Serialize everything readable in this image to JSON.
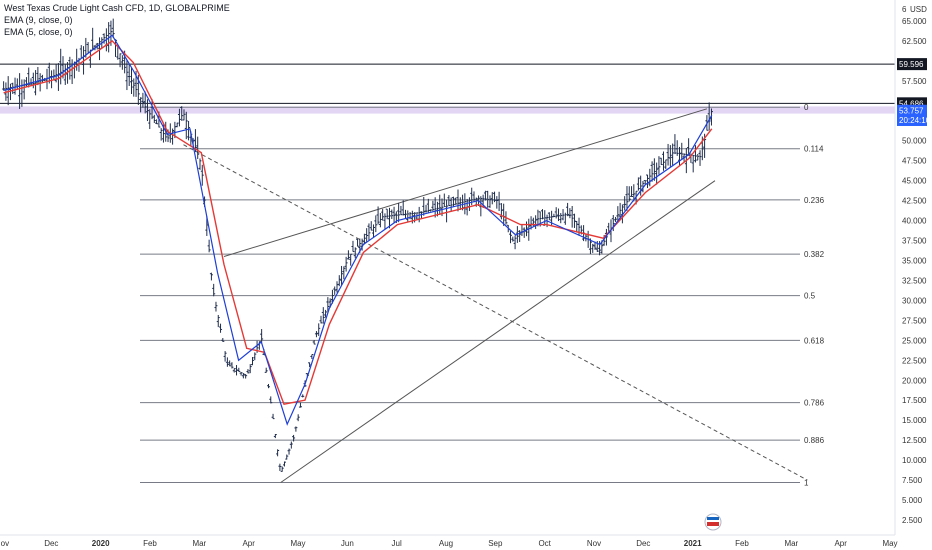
{
  "legend": {
    "title": "West Texas Crude Light Cash CFD, 1D, GLOBALPRIME",
    "ema9": "EMA (9, close, 0)",
    "ema5": "EMA (5, close, 0)"
  },
  "currency": "USD",
  "colors": {
    "ema9": "#e53935",
    "ema5": "#1e3fd6",
    "candle": "#1f2d4d",
    "zone": "#d9c8f2",
    "tag_dark": "#131722",
    "tag_blue": "#2962ff"
  },
  "chart_data": {
    "type": "candlestick",
    "title": "West Texas Crude Light Cash CFD, 1D, GLOBALPRIME",
    "x_ticks": [
      "Nov",
      "Dec",
      "2020",
      "Feb",
      "Mar",
      "Apr",
      "May",
      "Jun",
      "Jul",
      "Aug",
      "Sep",
      "Oct",
      "Nov",
      "Dec",
      "2021",
      "Feb",
      "Mar",
      "Apr",
      "May"
    ],
    "y_ticks": [
      "65.000",
      "62.500",
      "57.500",
      "52.500",
      "50.000",
      "47.500",
      "45.000",
      "42.500",
      "40.000",
      "37.500",
      "35.000",
      "32.500",
      "30.000",
      "27.500",
      "25.000",
      "22.500",
      "20.000",
      "17.500",
      "15.000",
      "12.500",
      "10.000",
      "7.500",
      "5.000",
      "2.500"
    ],
    "y_top_label": "6",
    "ylim": [
      1.5,
      67
    ],
    "price_tags": [
      {
        "value": 59.596,
        "label": "59.596",
        "style": "dark"
      },
      {
        "value": 54.686,
        "label": "54.686",
        "style": "dark"
      },
      {
        "value": 53.757,
        "label": "53.757",
        "style": "blue"
      },
      {
        "value": 52.6,
        "label": "20:24:10",
        "style": "blue"
      }
    ],
    "horizontal_levels": [
      59.596,
      54.686
    ],
    "zone": [
      53.4,
      54.3
    ],
    "fibonacci": [
      {
        "ratio": "0",
        "value": 54.2
      },
      {
        "ratio": "0.114",
        "value": 49.0
      },
      {
        "ratio": "0.236",
        "value": 42.6
      },
      {
        "ratio": "0.382",
        "value": 35.8
      },
      {
        "ratio": "0.5",
        "value": 30.6
      },
      {
        "ratio": "0.618",
        "value": 25.0
      },
      {
        "ratio": "0.786",
        "value": 17.2
      },
      {
        "ratio": "0.886",
        "value": 12.5
      },
      {
        "ratio": "1",
        "value": 7.2
      }
    ],
    "trendlines": [
      {
        "name": "upper",
        "from": [
          "2020-03-16",
          35.5
        ],
        "to": [
          "2021-01-08",
          54.0
        ],
        "style": "solid"
      },
      {
        "name": "lower",
        "from": [
          "2020-04-20",
          7.2
        ],
        "to": [
          "2021-01-13",
          45.0
        ],
        "style": "solid"
      },
      {
        "name": "diagonal",
        "from": [
          "2020-02-20",
          49.5
        ],
        "to": [
          "2021-03-11",
          7.5
        ],
        "style": "dashed"
      }
    ],
    "price_series": [
      {
        "date": "2019-11-01",
        "close": 56.5
      },
      {
        "date": "2019-11-20",
        "close": 57.2
      },
      {
        "date": "2019-12-05",
        "close": 58.4
      },
      {
        "date": "2019-12-20",
        "close": 60.5
      },
      {
        "date": "2020-01-03",
        "close": 63.1
      },
      {
        "date": "2020-01-07",
        "close": 63.8
      },
      {
        "date": "2020-01-15",
        "close": 59.0
      },
      {
        "date": "2020-01-28",
        "close": 54.0
      },
      {
        "date": "2020-02-10",
        "close": 50.2
      },
      {
        "date": "2020-02-20",
        "close": 53.5
      },
      {
        "date": "2020-03-02",
        "close": 47.0
      },
      {
        "date": "2020-03-09",
        "close": 31.5
      },
      {
        "date": "2020-03-18",
        "close": 22.0
      },
      {
        "date": "2020-03-30",
        "close": 20.5
      },
      {
        "date": "2020-04-08",
        "close": 25.5
      },
      {
        "date": "2020-04-20",
        "close": 8.5
      },
      {
        "date": "2020-04-28",
        "close": 12.8
      },
      {
        "date": "2020-05-12",
        "close": 25.8
      },
      {
        "date": "2020-06-01",
        "close": 35.5
      },
      {
        "date": "2020-06-22",
        "close": 40.5
      },
      {
        "date": "2020-07-15",
        "close": 41.0
      },
      {
        "date": "2020-08-20",
        "close": 42.8
      },
      {
        "date": "2020-09-01",
        "close": 42.5
      },
      {
        "date": "2020-09-10",
        "close": 37.5
      },
      {
        "date": "2020-09-25",
        "close": 40.2
      },
      {
        "date": "2020-10-15",
        "close": 40.8
      },
      {
        "date": "2020-11-02",
        "close": 36.0
      },
      {
        "date": "2020-11-16",
        "close": 41.5
      },
      {
        "date": "2020-12-01",
        "close": 45.0
      },
      {
        "date": "2020-12-18",
        "close": 48.5
      },
      {
        "date": "2021-01-04",
        "close": 48.0
      },
      {
        "date": "2021-01-11",
        "close": 53.8
      }
    ],
    "ema9_series": [
      {
        "date": "2019-11-01",
        "value": 56.0
      },
      {
        "date": "2019-12-05",
        "value": 57.8
      },
      {
        "date": "2020-01-07",
        "value": 62.5
      },
      {
        "date": "2020-01-20",
        "value": 59.8
      },
      {
        "date": "2020-02-10",
        "value": 51.2
      },
      {
        "date": "2020-03-02",
        "value": 48.5
      },
      {
        "date": "2020-03-16",
        "value": 34.5
      },
      {
        "date": "2020-03-30",
        "value": 24.0
      },
      {
        "date": "2020-04-10",
        "value": 23.5
      },
      {
        "date": "2020-04-22",
        "value": 17.0
      },
      {
        "date": "2020-05-05",
        "value": 17.5
      },
      {
        "date": "2020-05-20",
        "value": 27.0
      },
      {
        "date": "2020-06-10",
        "value": 36.0
      },
      {
        "date": "2020-07-01",
        "value": 39.5
      },
      {
        "date": "2020-08-20",
        "value": 42.0
      },
      {
        "date": "2020-09-15",
        "value": 39.5
      },
      {
        "date": "2020-10-01",
        "value": 39.5
      },
      {
        "date": "2020-11-05",
        "value": 37.8
      },
      {
        "date": "2020-12-01",
        "value": 43.5
      },
      {
        "date": "2020-12-28",
        "value": 47.8
      },
      {
        "date": "2021-01-11",
        "value": 51.5
      }
    ],
    "ema5_series": [
      {
        "date": "2019-11-01",
        "value": 56.3
      },
      {
        "date": "2019-12-05",
        "value": 58.2
      },
      {
        "date": "2020-01-07",
        "value": 63.2
      },
      {
        "date": "2020-01-20",
        "value": 58.8
      },
      {
        "date": "2020-02-10",
        "value": 50.8
      },
      {
        "date": "2020-02-24",
        "value": 51.5
      },
      {
        "date": "2020-03-12",
        "value": 33.5
      },
      {
        "date": "2020-03-25",
        "value": 22.5
      },
      {
        "date": "2020-04-08",
        "value": 24.8
      },
      {
        "date": "2020-04-24",
        "value": 14.5
      },
      {
        "date": "2020-05-05",
        "value": 19.5
      },
      {
        "date": "2020-05-20",
        "value": 29.0
      },
      {
        "date": "2020-06-10",
        "value": 37.0
      },
      {
        "date": "2020-07-01",
        "value": 40.0
      },
      {
        "date": "2020-08-20",
        "value": 42.5
      },
      {
        "date": "2020-09-12",
        "value": 38.2
      },
      {
        "date": "2020-10-01",
        "value": 40.0
      },
      {
        "date": "2020-11-03",
        "value": 37.0
      },
      {
        "date": "2020-12-01",
        "value": 44.5
      },
      {
        "date": "2020-12-28",
        "value": 48.3
      },
      {
        "date": "2021-01-11",
        "value": 53.2
      }
    ],
    "grid": false,
    "legend_position": "top-left"
  }
}
